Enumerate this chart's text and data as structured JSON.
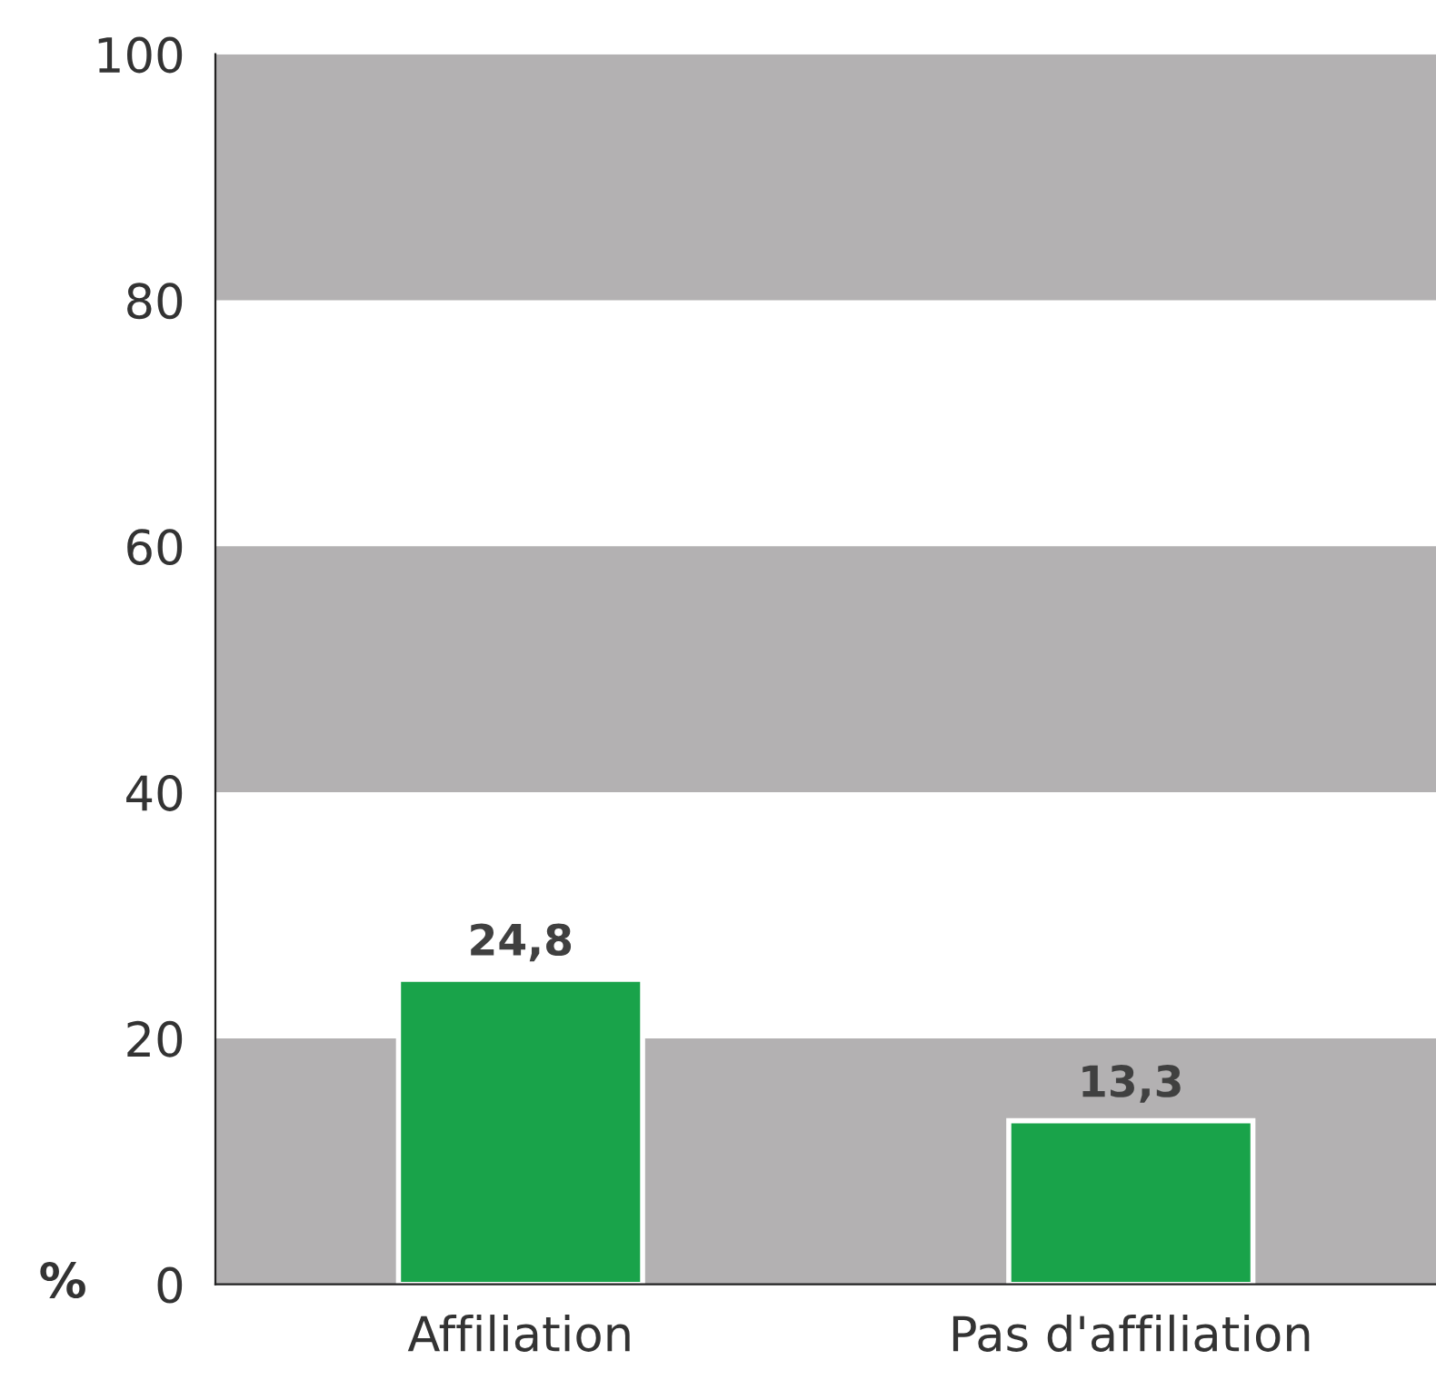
{
  "chart_data": {
    "type": "bar",
    "ylabel": "%",
    "categories": [
      "Affiliation",
      "Pas d'affiliation"
    ],
    "values": [
      24.8,
      13.3
    ],
    "color": "#19a34a",
    "value_labels": [
      "24,8",
      "13,3"
    ],
    "ylim": [
      0,
      100
    ],
    "yticks": [
      0,
      20,
      40,
      60,
      80,
      100
    ],
    "grid": false,
    "legend": false,
    "bands": [
      {
        "axis": "y",
        "from": 0,
        "to": 20,
        "color": "#b3b1b2"
      },
      {
        "axis": "y",
        "from": 40,
        "to": 60,
        "color": "#b3b1b2"
      },
      {
        "axis": "y",
        "from": 80,
        "to": 100,
        "color": "#b3b1b2"
      }
    ]
  }
}
